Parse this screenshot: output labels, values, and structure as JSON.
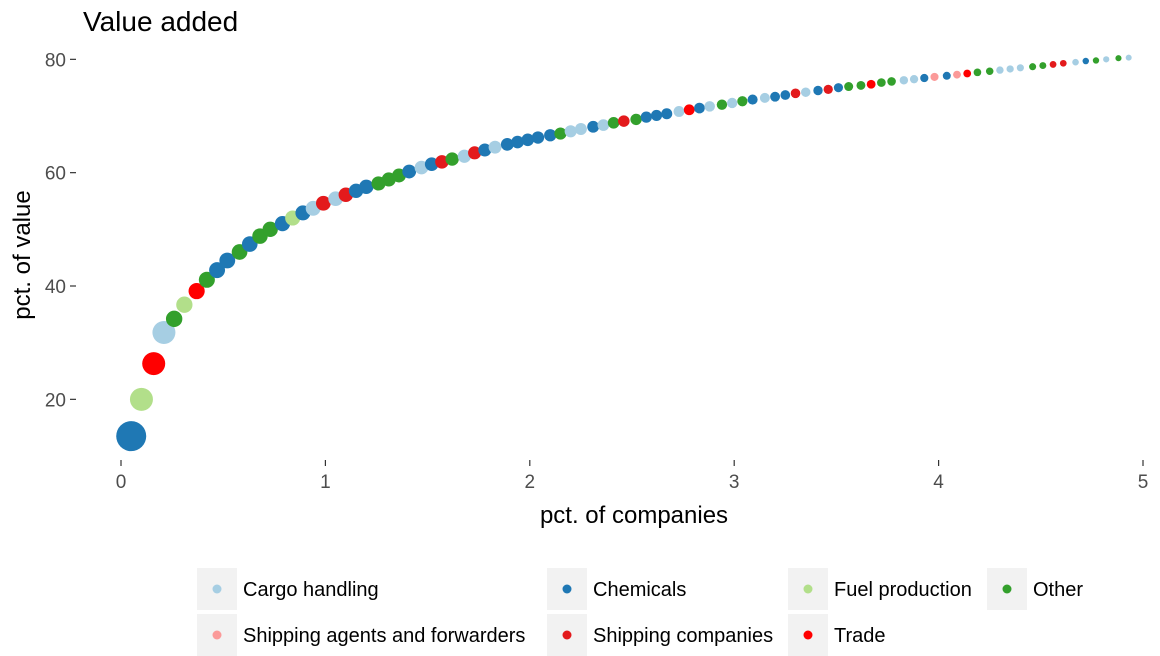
{
  "chart_data": {
    "type": "scatter",
    "title": "Value added",
    "xlabel": "pct. of companies",
    "ylabel": "pct. of value",
    "xlim": [
      0,
      5
    ],
    "ylim": [
      10,
      82
    ],
    "x_ticks": [
      0,
      1,
      2,
      3,
      4,
      5
    ],
    "x_tick_labels": [
      "0",
      "1",
      "2",
      "3",
      "4",
      "5"
    ],
    "y_ticks": [
      20,
      40,
      60,
      80
    ],
    "y_tick_labels": [
      "20",
      "40",
      "60",
      "80"
    ],
    "grid": false,
    "legend_position": "bottom",
    "series": [
      {
        "name": "Cargo handling",
        "color": "#a6cee3"
      },
      {
        "name": "Chemicals",
        "color": "#1f78b4"
      },
      {
        "name": "Fuel production",
        "color": "#b2df8a"
      },
      {
        "name": "Other",
        "color": "#33a02c"
      },
      {
        "name": "Shipping agents and forwarders",
        "color": "#fb9a99"
      },
      {
        "name": "Shipping companies",
        "color": "#e31a1c"
      },
      {
        "name": "Trade",
        "color": "#ff0000"
      }
    ],
    "legend_rows": [
      [
        "Cargo handling",
        "Chemicals",
        "Fuel production",
        "Other"
      ],
      [
        "Shipping agents and forwarders",
        "Shipping companies",
        "Trade"
      ]
    ],
    "points": [
      {
        "x": 0.05,
        "y": 13.5,
        "series": "Chemicals"
      },
      {
        "x": 0.1,
        "y": 20.0,
        "series": "Fuel production"
      },
      {
        "x": 0.16,
        "y": 26.3,
        "series": "Trade"
      },
      {
        "x": 0.21,
        "y": 31.8,
        "series": "Cargo handling"
      },
      {
        "x": 0.26,
        "y": 34.2,
        "series": "Other"
      },
      {
        "x": 0.31,
        "y": 36.7,
        "series": "Fuel production"
      },
      {
        "x": 0.37,
        "y": 39.1,
        "series": "Trade"
      },
      {
        "x": 0.42,
        "y": 41.1,
        "series": "Other"
      },
      {
        "x": 0.47,
        "y": 42.8,
        "series": "Chemicals"
      },
      {
        "x": 0.52,
        "y": 44.5,
        "series": "Chemicals"
      },
      {
        "x": 0.58,
        "y": 46.0,
        "series": "Other"
      },
      {
        "x": 0.63,
        "y": 47.4,
        "series": "Chemicals"
      },
      {
        "x": 0.68,
        "y": 48.8,
        "series": "Other"
      },
      {
        "x": 0.73,
        "y": 50.0,
        "series": "Other"
      },
      {
        "x": 0.79,
        "y": 51.0,
        "series": "Chemicals"
      },
      {
        "x": 0.84,
        "y": 52.0,
        "series": "Fuel production"
      },
      {
        "x": 0.89,
        "y": 52.9,
        "series": "Chemicals"
      },
      {
        "x": 0.94,
        "y": 53.7,
        "series": "Cargo handling"
      },
      {
        "x": 0.99,
        "y": 54.6,
        "series": "Shipping companies"
      },
      {
        "x": 1.05,
        "y": 55.4,
        "series": "Cargo handling"
      },
      {
        "x": 1.1,
        "y": 56.1,
        "series": "Shipping companies"
      },
      {
        "x": 1.15,
        "y": 56.8,
        "series": "Chemicals"
      },
      {
        "x": 1.2,
        "y": 57.5,
        "series": "Chemicals"
      },
      {
        "x": 1.26,
        "y": 58.1,
        "series": "Other"
      },
      {
        "x": 1.31,
        "y": 58.8,
        "series": "Other"
      },
      {
        "x": 1.36,
        "y": 59.5,
        "series": "Other"
      },
      {
        "x": 1.41,
        "y": 60.2,
        "series": "Chemicals"
      },
      {
        "x": 1.47,
        "y": 60.9,
        "series": "Cargo handling"
      },
      {
        "x": 1.52,
        "y": 61.5,
        "series": "Chemicals"
      },
      {
        "x": 1.57,
        "y": 61.9,
        "series": "Shipping companies"
      },
      {
        "x": 1.62,
        "y": 62.4,
        "series": "Other"
      },
      {
        "x": 1.68,
        "y": 62.9,
        "series": "Cargo handling"
      },
      {
        "x": 1.73,
        "y": 63.5,
        "series": "Shipping companies"
      },
      {
        "x": 1.78,
        "y": 64.0,
        "series": "Chemicals"
      },
      {
        "x": 1.83,
        "y": 64.5,
        "series": "Cargo handling"
      },
      {
        "x": 1.89,
        "y": 65.0,
        "series": "Chemicals"
      },
      {
        "x": 1.94,
        "y": 65.4,
        "series": "Chemicals"
      },
      {
        "x": 1.99,
        "y": 65.8,
        "series": "Chemicals"
      },
      {
        "x": 2.04,
        "y": 66.2,
        "series": "Chemicals"
      },
      {
        "x": 2.1,
        "y": 66.6,
        "series": "Chemicals"
      },
      {
        "x": 2.15,
        "y": 66.9,
        "series": "Other"
      },
      {
        "x": 2.2,
        "y": 67.3,
        "series": "Cargo handling"
      },
      {
        "x": 2.25,
        "y": 67.7,
        "series": "Cargo handling"
      },
      {
        "x": 2.31,
        "y": 68.1,
        "series": "Chemicals"
      },
      {
        "x": 2.36,
        "y": 68.4,
        "series": "Cargo handling"
      },
      {
        "x": 2.41,
        "y": 68.8,
        "series": "Other"
      },
      {
        "x": 2.46,
        "y": 69.1,
        "series": "Shipping companies"
      },
      {
        "x": 2.52,
        "y": 69.4,
        "series": "Other"
      },
      {
        "x": 2.57,
        "y": 69.8,
        "series": "Chemicals"
      },
      {
        "x": 2.62,
        "y": 70.1,
        "series": "Chemicals"
      },
      {
        "x": 2.67,
        "y": 70.4,
        "series": "Chemicals"
      },
      {
        "x": 2.73,
        "y": 70.8,
        "series": "Cargo handling"
      },
      {
        "x": 2.78,
        "y": 71.1,
        "series": "Trade"
      },
      {
        "x": 2.83,
        "y": 71.4,
        "series": "Chemicals"
      },
      {
        "x": 2.88,
        "y": 71.7,
        "series": "Cargo handling"
      },
      {
        "x": 2.94,
        "y": 72.0,
        "series": "Other"
      },
      {
        "x": 2.99,
        "y": 72.3,
        "series": "Cargo handling"
      },
      {
        "x": 3.04,
        "y": 72.6,
        "series": "Other"
      },
      {
        "x": 3.09,
        "y": 72.9,
        "series": "Chemicals"
      },
      {
        "x": 3.15,
        "y": 73.2,
        "series": "Cargo handling"
      },
      {
        "x": 3.2,
        "y": 73.4,
        "series": "Chemicals"
      },
      {
        "x": 3.25,
        "y": 73.7,
        "series": "Chemicals"
      },
      {
        "x": 3.3,
        "y": 74.0,
        "series": "Shipping companies"
      },
      {
        "x": 3.35,
        "y": 74.2,
        "series": "Cargo handling"
      },
      {
        "x": 3.41,
        "y": 74.5,
        "series": "Chemicals"
      },
      {
        "x": 3.46,
        "y": 74.7,
        "series": "Shipping companies"
      },
      {
        "x": 3.51,
        "y": 75.0,
        "series": "Chemicals"
      },
      {
        "x": 3.56,
        "y": 75.2,
        "series": "Other"
      },
      {
        "x": 3.62,
        "y": 75.4,
        "series": "Other"
      },
      {
        "x": 3.67,
        "y": 75.6,
        "series": "Trade"
      },
      {
        "x": 3.72,
        "y": 75.9,
        "series": "Other"
      },
      {
        "x": 3.77,
        "y": 76.1,
        "series": "Other"
      },
      {
        "x": 3.83,
        "y": 76.3,
        "series": "Cargo handling"
      },
      {
        "x": 3.88,
        "y": 76.5,
        "series": "Cargo handling"
      },
      {
        "x": 3.93,
        "y": 76.7,
        "series": "Chemicals"
      },
      {
        "x": 3.98,
        "y": 76.9,
        "series": "Shipping agents and forwarders"
      },
      {
        "x": 4.04,
        "y": 77.1,
        "series": "Chemicals"
      },
      {
        "x": 4.09,
        "y": 77.3,
        "series": "Shipping agents and forwarders"
      },
      {
        "x": 4.14,
        "y": 77.5,
        "series": "Trade"
      },
      {
        "x": 4.19,
        "y": 77.7,
        "series": "Other"
      },
      {
        "x": 4.25,
        "y": 77.9,
        "series": "Other"
      },
      {
        "x": 4.3,
        "y": 78.1,
        "series": "Cargo handling"
      },
      {
        "x": 4.35,
        "y": 78.3,
        "series": "Cargo handling"
      },
      {
        "x": 4.4,
        "y": 78.5,
        "series": "Cargo handling"
      },
      {
        "x": 4.46,
        "y": 78.7,
        "series": "Other"
      },
      {
        "x": 4.51,
        "y": 78.9,
        "series": "Other"
      },
      {
        "x": 4.56,
        "y": 79.1,
        "series": "Shipping companies"
      },
      {
        "x": 4.61,
        "y": 79.3,
        "series": "Shipping companies"
      },
      {
        "x": 4.67,
        "y": 79.5,
        "series": "Cargo handling"
      },
      {
        "x": 4.72,
        "y": 79.7,
        "series": "Chemicals"
      },
      {
        "x": 4.77,
        "y": 79.8,
        "series": "Other"
      },
      {
        "x": 4.82,
        "y": 80.0,
        "series": "Cargo handling"
      },
      {
        "x": 4.88,
        "y": 80.2,
        "series": "Other"
      },
      {
        "x": 4.93,
        "y": 80.3,
        "series": "Cargo handling"
      }
    ]
  }
}
